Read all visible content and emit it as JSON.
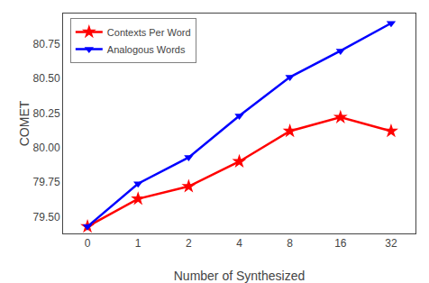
{
  "chart_data": {
    "type": "line",
    "xlabel": "Number of Synthesized",
    "ylabel": "COMET",
    "categories": [
      "0",
      "1",
      "2",
      "4",
      "8",
      "16",
      "32"
    ],
    "series": [
      {
        "name": "Contexts Per Word",
        "color": "#ff0000",
        "marker": "star",
        "values": [
          79.43,
          79.63,
          79.72,
          79.9,
          80.12,
          80.22,
          80.12
        ]
      },
      {
        "name": "Analogous Words",
        "color": "#0000ff",
        "marker": "triangle-down",
        "values": [
          79.43,
          79.74,
          79.93,
          80.23,
          80.51,
          80.7,
          80.9
        ]
      }
    ],
    "ylim": [
      79.38,
      80.97
    ],
    "yticks": [
      {
        "value": 79.5,
        "label": "79.50"
      },
      79.75,
      {
        "value": 80.0,
        "label": "80.00"
      },
      80.25,
      {
        "value": 80.5,
        "label": "80.50"
      },
      80.75
    ],
    "grid": false,
    "legend": "upper left"
  }
}
